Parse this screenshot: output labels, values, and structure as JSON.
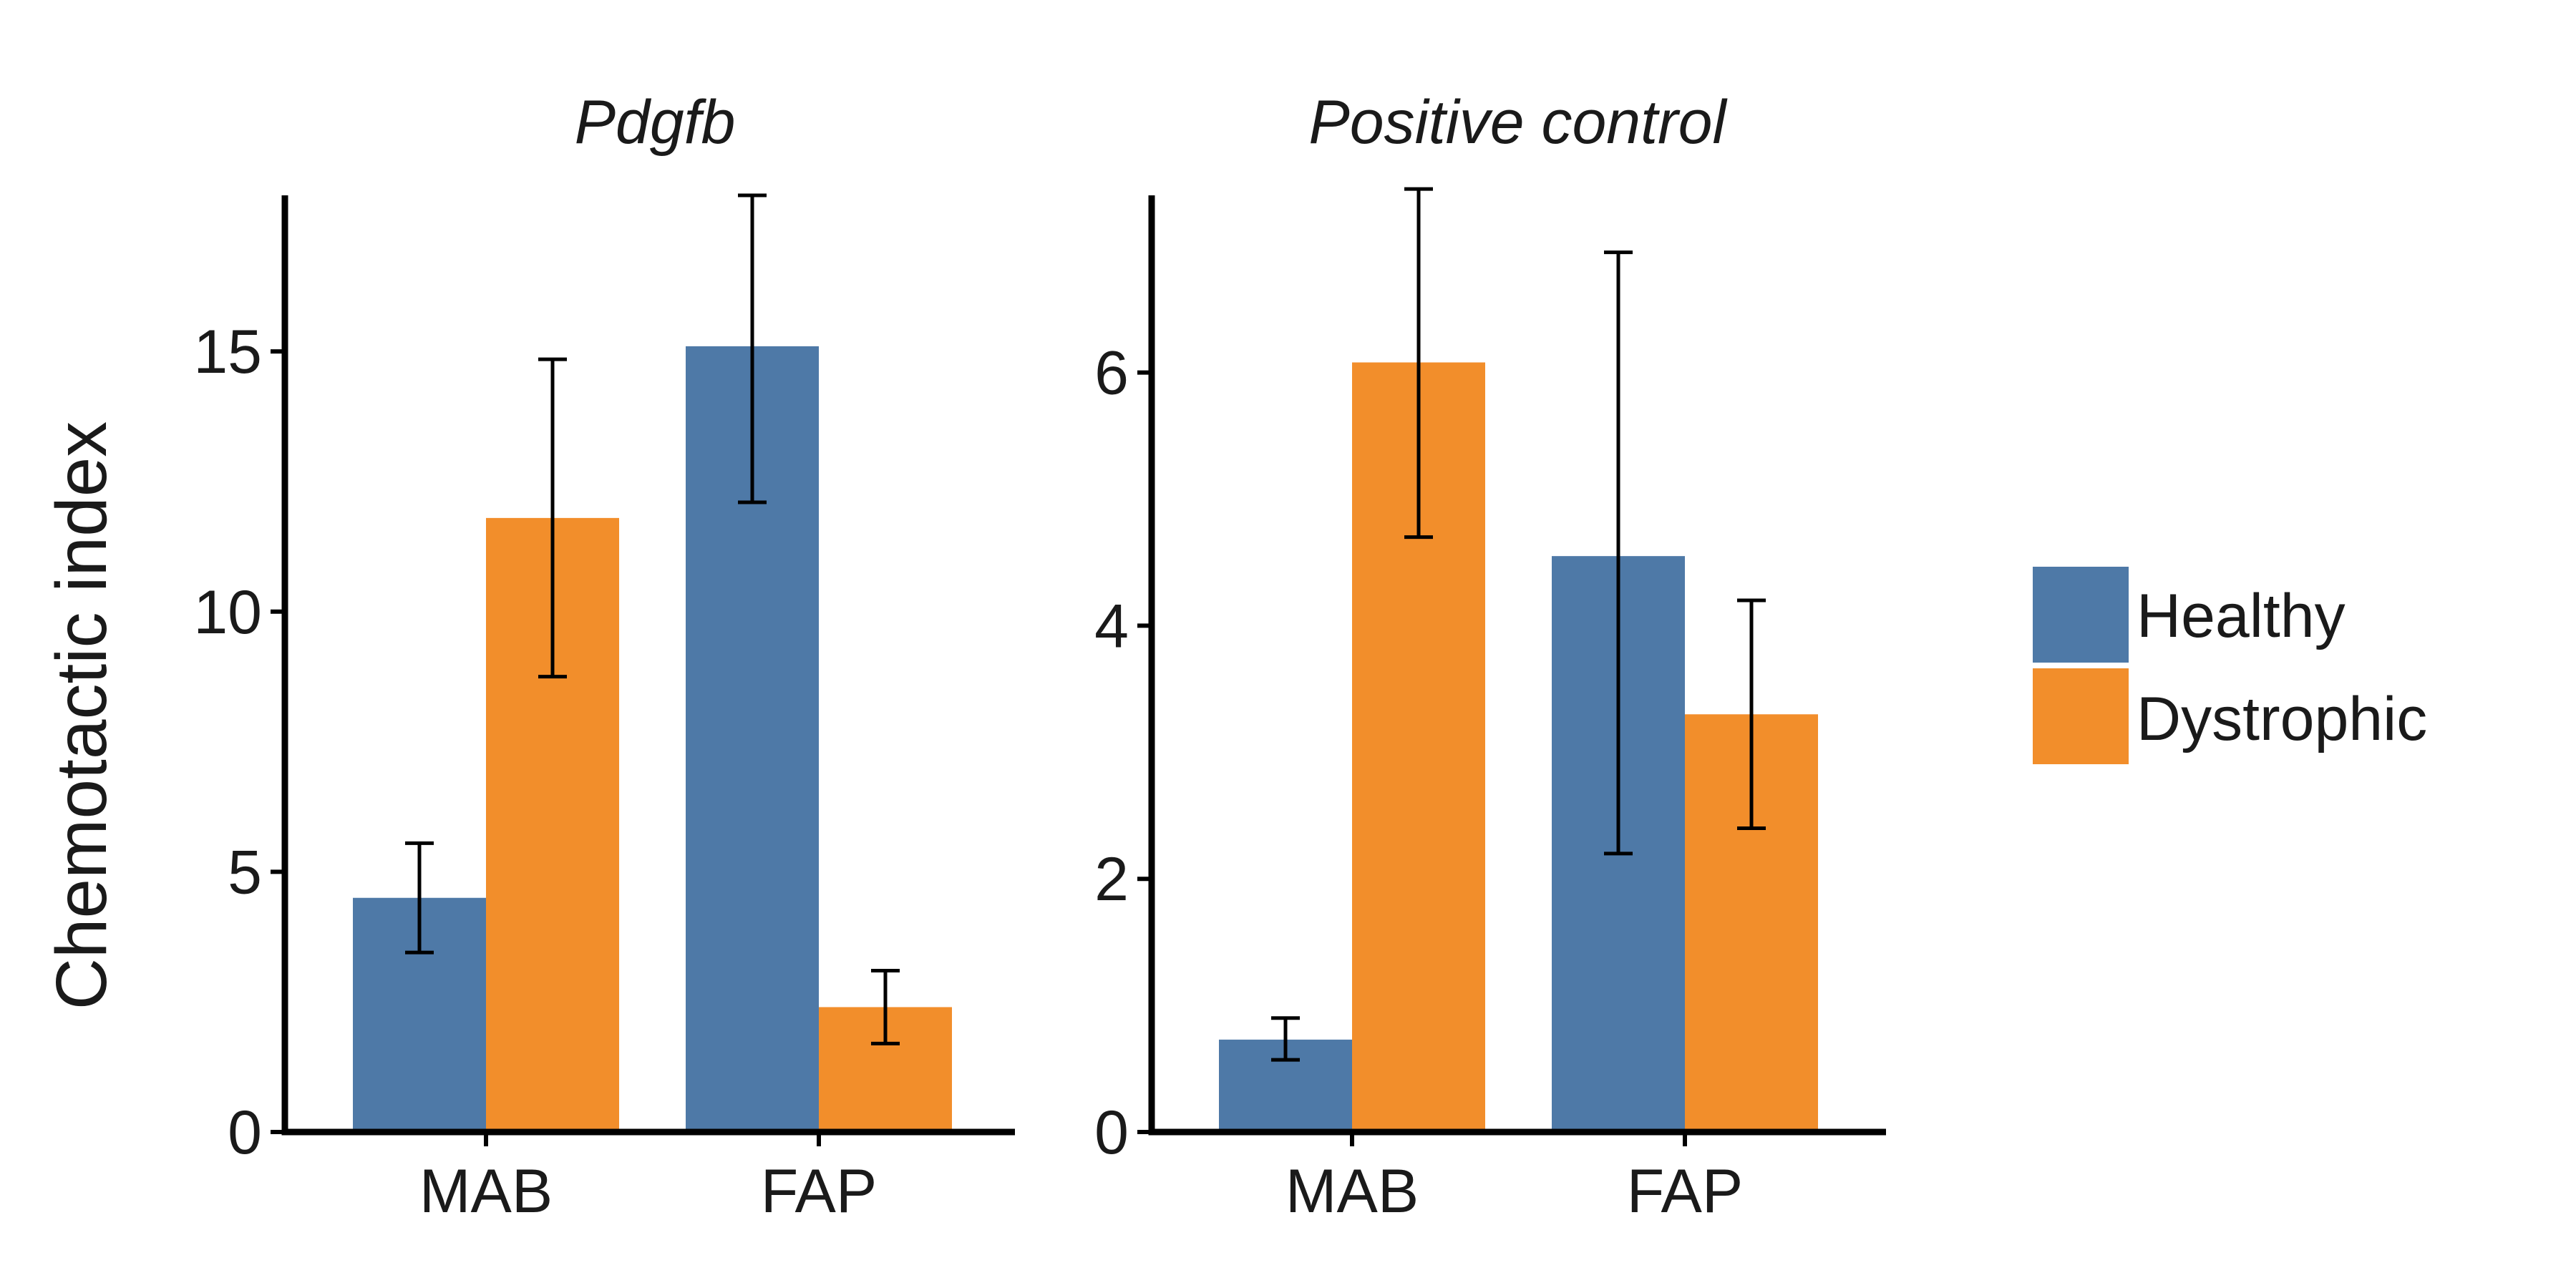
{
  "chart_data": [
    {
      "type": "bar",
      "title": "Pdgfb",
      "ylabel": "Chemotactic index",
      "categories": [
        "MAB",
        "FAP"
      ],
      "ylim": [
        0,
        18
      ],
      "yticks": [
        0,
        5,
        10,
        15
      ],
      "series": [
        {
          "name": "Healthy",
          "color": "#4e79a7",
          "values": [
            4.5,
            15.1
          ],
          "err_low": [
            3.45,
            12.1
          ],
          "err_high": [
            5.55,
            18.0
          ]
        },
        {
          "name": "Dystrophic",
          "color": "#f28e2b",
          "values": [
            11.8,
            2.4
          ],
          "err_low": [
            8.75,
            1.7
          ],
          "err_high": [
            14.85,
            3.1
          ]
        }
      ]
    },
    {
      "type": "bar",
      "title": "Positive control",
      "categories": [
        "MAB",
        "FAP"
      ],
      "ylim": [
        0,
        7.4
      ],
      "yticks": [
        0,
        2,
        4,
        6
      ],
      "series": [
        {
          "name": "Healthy",
          "color": "#4e79a7",
          "values": [
            0.73,
            4.55
          ],
          "err_low": [
            0.57,
            2.2
          ],
          "err_high": [
            0.9,
            6.95
          ]
        },
        {
          "name": "Dystrophic",
          "color": "#f28e2b",
          "values": [
            6.08,
            3.3
          ],
          "err_low": [
            4.7,
            2.4
          ],
          "err_high": [
            7.45,
            4.2
          ]
        }
      ]
    }
  ],
  "legend": {
    "position": "right",
    "items": [
      {
        "label": "Healthy",
        "color": "#4e79a7"
      },
      {
        "label": "Dystrophic",
        "color": "#f28e2b"
      }
    ]
  }
}
